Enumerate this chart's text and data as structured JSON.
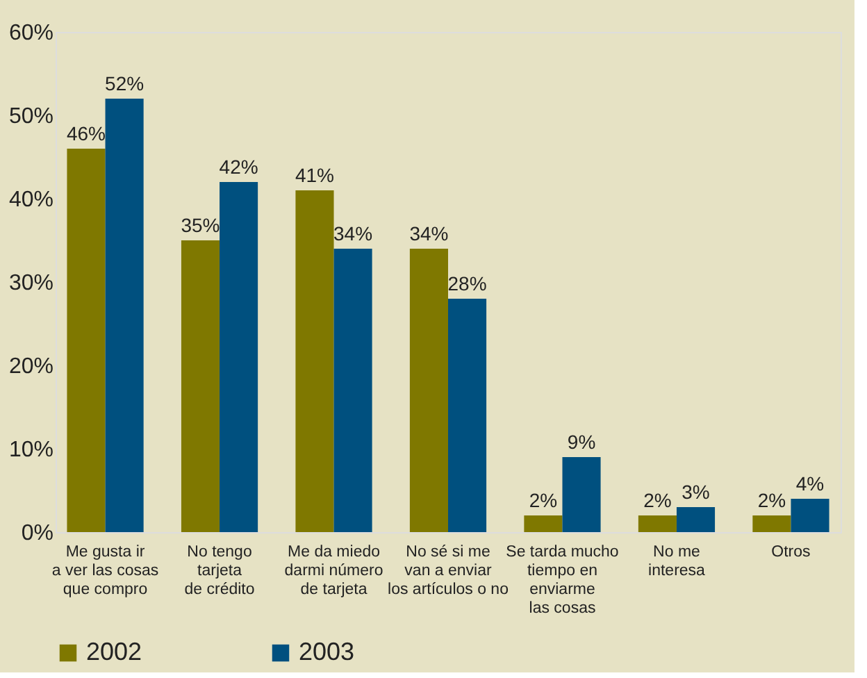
{
  "chart_data": {
    "type": "bar",
    "categories": [
      "Me gusta ir\na ver las cosas\nque compro",
      "No tengo\ntarjeta\nde crédito",
      "Me da miedo\ndarmi número\nde tarjeta",
      "No sé si me\nvan a enviar\nlos artículos o no",
      "Se tarda mucho\ntiempo en\nenviarme\nlas cosas",
      "No me\ninteresa",
      "Otros"
    ],
    "series": [
      {
        "name": "2002",
        "color": "#7f7800",
        "values": [
          46,
          35,
          41,
          34,
          2,
          2,
          2
        ],
        "value_labels": [
          "46%",
          "35%",
          "41%",
          "34%",
          "2%",
          "2%",
          "2%"
        ]
      },
      {
        "name": "2003",
        "color": "#00507f",
        "values": [
          52,
          42,
          34,
          28,
          9,
          3,
          4
        ],
        "value_labels": [
          "52%",
          "42%",
          "34%",
          "28%",
          "9%",
          "3%",
          "4%"
        ]
      }
    ],
    "ylim": [
      0,
      60
    ],
    "yticks": [
      {
        "value": 0,
        "label": "0%"
      },
      {
        "value": 10,
        "label": "10%"
      },
      {
        "value": 20,
        "label": "20%"
      },
      {
        "value": 30,
        "label": "30%"
      },
      {
        "value": 40,
        "label": "40%"
      },
      {
        "value": 50,
        "label": "50%"
      },
      {
        "value": 60,
        "label": "60%"
      }
    ],
    "grid": false,
    "legend": "bottom"
  }
}
